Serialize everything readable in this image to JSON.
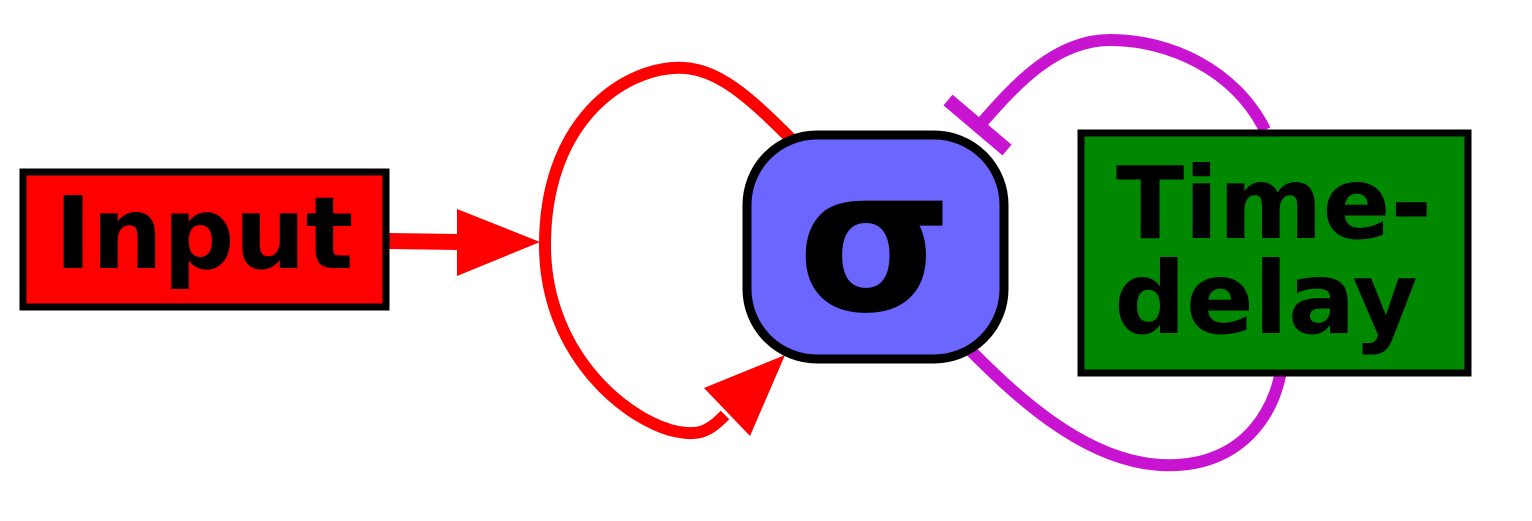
{
  "nodes": {
    "input": {
      "label": "Input",
      "color": "#ff0000"
    },
    "sigma": {
      "label": "σ",
      "color": "#6b66ff"
    },
    "delay": {
      "label_line1": "Time-",
      "label_line2": "delay",
      "color": "#008800"
    }
  },
  "edges": {
    "activation_color": "#ff0000",
    "inhibition_color": "#c814d0"
  }
}
